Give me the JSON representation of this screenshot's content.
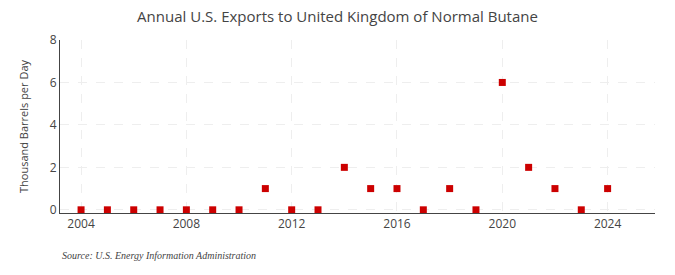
{
  "chart_data": {
    "type": "scatter",
    "title": "Annual U.S. Exports to United Kingdom of Normal Butane",
    "ylabel": "Thousand Barrels per Day",
    "annotations": [
      "Source: U.S. Energy Information Administration"
    ],
    "x": [
      2004,
      2005,
      2006,
      2007,
      2008,
      2009,
      2010,
      2011,
      2012,
      2013,
      2014,
      2015,
      2016,
      2017,
      2018,
      2019,
      2020,
      2021,
      2022,
      2023,
      2024
    ],
    "values": [
      0,
      0,
      0,
      0,
      0,
      0,
      0,
      1,
      0,
      0,
      2,
      1,
      1,
      0,
      1,
      0,
      6,
      2,
      1,
      0,
      1
    ],
    "color": "#cc0000",
    "marker": "square",
    "xlim": [
      2003.2,
      2025.8
    ],
    "xticks": [
      2004,
      2008,
      2012,
      2016,
      2020,
      2024
    ],
    "ylim": [
      -0.15,
      8
    ],
    "yticks": [
      0,
      2,
      4,
      6,
      8
    ],
    "grid": true
  }
}
